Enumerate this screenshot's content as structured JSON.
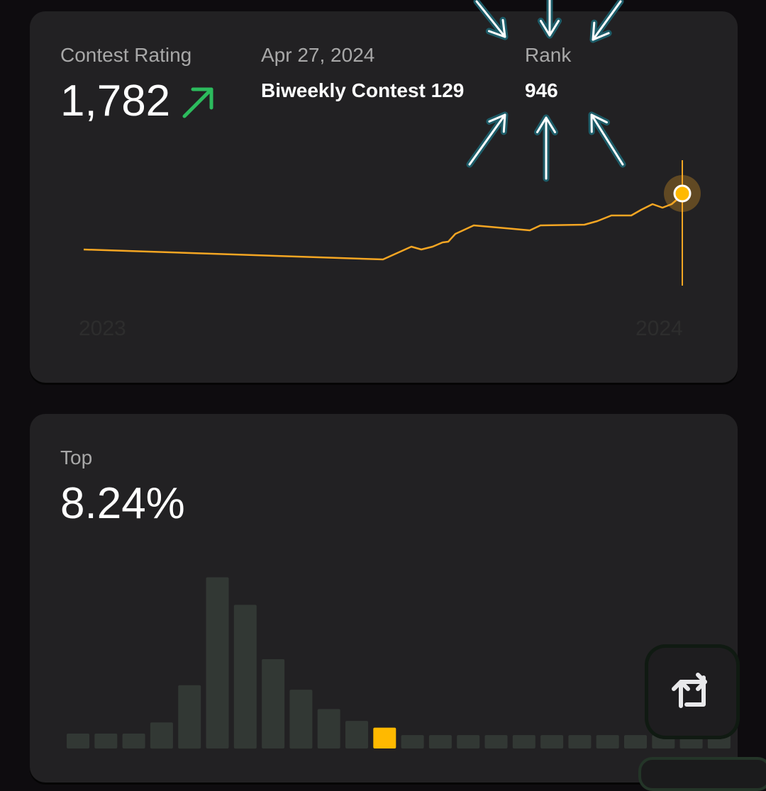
{
  "rating_card": {
    "label": "Contest Rating",
    "rating": "1,782",
    "trend_icon": "arrow-up-right-icon",
    "date": "Apr 27, 2024",
    "contest_name": "Biweekly Contest 129",
    "rank_label": "Rank",
    "rank_value": "946",
    "year_start": "2023",
    "year_end": "2024",
    "line_color": "#f5a623",
    "trend_color": "#2cbb5d"
  },
  "top_card": {
    "label": "Top",
    "percent": "8.24%",
    "bar_color": "#323834",
    "highlight_color": "#ffb900",
    "histogram": {
      "values": [
        2,
        2,
        2,
        3.5,
        8.5,
        23,
        19.3,
        12,
        7.9,
        5.3,
        3.7,
        2.8,
        1.8,
        1.8,
        1.8,
        1.8,
        1.8,
        1.8,
        1.8,
        1.8,
        1.8,
        1.8,
        1.8,
        1.8
      ],
      "highlight_index": 11
    }
  },
  "share_button": {
    "icon": "repost-icon"
  },
  "annotation": {
    "icon": "arrows-pointing-at-rank-icon",
    "color": "#1d5c68"
  }
}
